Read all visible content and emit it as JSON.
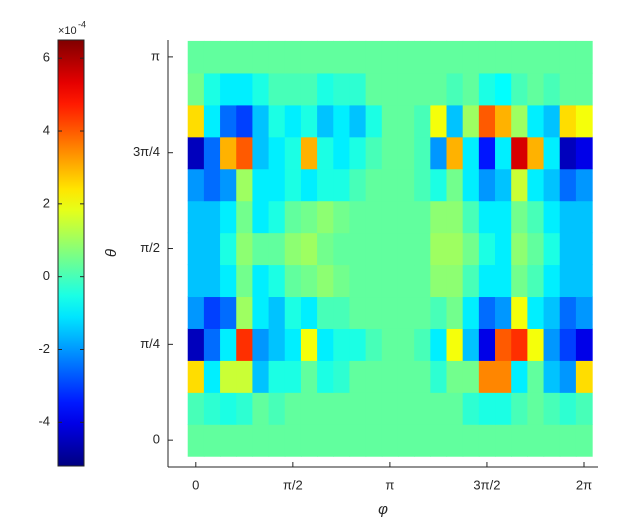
{
  "chart_data": {
    "type": "heatmap",
    "xlabel": "φ",
    "ylabel": "θ",
    "x": [
      0,
      0.2618,
      0.5236,
      0.7854,
      1.0472,
      1.309,
      1.5708,
      1.8326,
      2.0944,
      2.3562,
      2.618,
      2.8798,
      3.1416,
      3.4034,
      3.6652,
      3.927,
      4.1888,
      4.4506,
      4.7124,
      4.9742,
      5.236,
      5.4978,
      5.7596,
      6.0214,
      6.2832
    ],
    "y": [
      0,
      0.2618,
      0.5236,
      0.7854,
      1.0472,
      1.309,
      1.5708,
      1.8326,
      2.0944,
      2.3562,
      2.618,
      2.8798,
      3.1416
    ],
    "values": [
      [
        0.3,
        0.3,
        0.3,
        0.3,
        0.3,
        0.3,
        0.3,
        0.3,
        0.3,
        0.3,
        0.3,
        0.3,
        0.3,
        0.3,
        0.3,
        0.3,
        0.3,
        0.3,
        0.3,
        0.3,
        0.3,
        0.3,
        0.3,
        0.3,
        0.3
      ],
      [
        0,
        -0.3,
        -0.5,
        -0.3,
        0.3,
        0,
        0.3,
        0.3,
        0.3,
        0.3,
        0.3,
        0.3,
        0.3,
        0.3,
        0.3,
        0.3,
        0.3,
        -0.3,
        -0.5,
        -0.5,
        0,
        0.3,
        0,
        -0.3,
        0
      ],
      [
        2.5,
        -1,
        1.5,
        1.5,
        -1.5,
        -0.5,
        -0.5,
        0.3,
        -0.5,
        -0.3,
        0.3,
        0.3,
        0.3,
        0.3,
        0.3,
        -0.3,
        0.5,
        0.5,
        3.5,
        3.5,
        -1,
        0.3,
        -1.5,
        -2,
        2.5
      ],
      [
        -4.5,
        -2.5,
        -1,
        4.5,
        -2,
        -1.5,
        -1,
        2,
        -1,
        -0.5,
        -0.5,
        0,
        0.3,
        0.3,
        0,
        -1,
        2,
        -1.5,
        -4,
        4,
        4.5,
        2,
        -2,
        -3,
        -4
      ],
      [
        -2,
        -3,
        -2.5,
        1,
        -1,
        -1.5,
        -0.5,
        -1,
        0,
        0,
        0.3,
        0.3,
        0.3,
        0.3,
        0.3,
        0,
        0.5,
        -1,
        -2.5,
        -2,
        2,
        -1,
        -1.5,
        -2.5,
        -2
      ],
      [
        -1.5,
        -1.5,
        -1,
        0.5,
        -1,
        -0.5,
        0.3,
        0.5,
        0.8,
        0.5,
        0.3,
        0.3,
        0.3,
        0.3,
        0.3,
        0.8,
        0.8,
        0,
        -1,
        -1,
        0.5,
        0,
        -1,
        -1.5,
        -1.5
      ],
      [
        -1.5,
        -1.5,
        -0.5,
        0.8,
        0.3,
        0.3,
        0.8,
        1,
        0.5,
        0.3,
        0.3,
        0.3,
        0.3,
        0.3,
        0.3,
        1,
        1,
        0.5,
        -0.5,
        -1,
        0.8,
        0.3,
        -0.5,
        -1.5,
        -1.5
      ],
      [
        -1.5,
        -1.5,
        -1,
        0.5,
        -1,
        -0.5,
        0.3,
        0.5,
        0.8,
        0.5,
        0.3,
        0.3,
        0.3,
        0.3,
        0.3,
        0.8,
        0.8,
        0,
        -1,
        -1,
        0.5,
        0,
        -1,
        -1.5,
        -1.5
      ],
      [
        -2,
        -2.5,
        -2,
        1,
        -1,
        -1,
        -0.5,
        -1,
        -0.5,
        -0.5,
        0,
        0.3,
        0.3,
        0.3,
        0,
        -0.5,
        0.5,
        -1,
        -2,
        -1.5,
        1.5,
        -1,
        -1.5,
        -2.5,
        -2
      ],
      [
        -4.5,
        -2.5,
        3,
        4,
        -1.5,
        -1,
        -0.5,
        3,
        -0.5,
        -1,
        -0.5,
        0,
        0.3,
        0.3,
        0,
        -2,
        3,
        -1,
        -3.5,
        -1,
        5.5,
        3,
        -1,
        -4.5,
        -4
      ],
      [
        2.5,
        -1,
        -2.5,
        -3,
        -1.5,
        -0.5,
        -1,
        -0.5,
        -1.5,
        -1,
        -1.5,
        -0.5,
        0.3,
        0.3,
        0,
        2,
        -1.5,
        1,
        4,
        3,
        1,
        -1,
        -1.5,
        2.5,
        2
      ],
      [
        0.5,
        -0.5,
        -1,
        -1,
        -0.5,
        0,
        0,
        0,
        -0.5,
        -0.3,
        -0.3,
        0.3,
        0.3,
        0.3,
        0.3,
        0.3,
        0,
        0.3,
        -0.5,
        -0.8,
        0,
        0.3,
        0,
        0.3,
        0.3
      ],
      [
        0.3,
        0.3,
        0.3,
        0.3,
        0.3,
        0.3,
        0.3,
        0.3,
        0.3,
        0.3,
        0.3,
        0.3,
        0.3,
        0.3,
        0.3,
        0.3,
        0.3,
        0.3,
        0.3,
        0.3,
        0.3,
        0.3,
        0.3,
        0.3,
        0.3
      ]
    ],
    "xlim": [
      -0.45,
      6.51
    ],
    "ylim": [
      -0.22,
      3.28
    ],
    "xticks": [
      0,
      {
        "value": 1.5708,
        "label": "π/2"
      },
      {
        "value": 3.1416,
        "label": "π"
      },
      {
        "value": 4.7124,
        "label": "3π/2"
      },
      {
        "value": 6.2832,
        "label": "2π"
      }
    ],
    "yticks": [
      0,
      {
        "value": 0.7854,
        "label": "π/4"
      },
      {
        "value": 1.5708,
        "label": "π/2"
      },
      {
        "value": 2.3562,
        "label": "3π/4"
      },
      {
        "value": 3.1416,
        "label": "π"
      }
    ],
    "colormap": "jet",
    "clim": [
      -5.2,
      6.5
    ],
    "cticks": [
      -4,
      -2,
      0,
      2,
      4,
      6
    ],
    "cmultiplier": "×10",
    "cexponent": "-4"
  }
}
